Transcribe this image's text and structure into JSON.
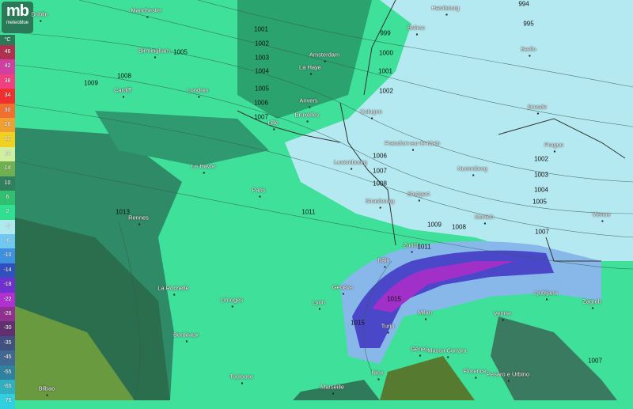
{
  "logo": {
    "mark": "mb",
    "name": "meteoblue"
  },
  "legend": {
    "unit": "°C",
    "entries": [
      {
        "label": "46",
        "color": "#b03050"
      },
      {
        "label": "42",
        "color": "#d040a0"
      },
      {
        "label": "38",
        "color": "#f04080"
      },
      {
        "label": "34",
        "color": "#f03030"
      },
      {
        "label": "30",
        "color": "#f07030"
      },
      {
        "label": "26",
        "color": "#f0a030"
      },
      {
        "label": "22",
        "color": "#f0d020"
      },
      {
        "label": "18",
        "color": "#d0f0a0"
      },
      {
        "label": "14",
        "color": "#70b050"
      },
      {
        "label": "10",
        "color": "#308060"
      },
      {
        "label": "6",
        "color": "#30c070"
      },
      {
        "label": "2",
        "color": "#30e090"
      },
      {
        "label": "-2",
        "color": "#b0e8f0"
      },
      {
        "label": "-6",
        "color": "#70c8f0"
      },
      {
        "label": "-10",
        "color": "#4090e0"
      },
      {
        "label": "-14",
        "color": "#3050c0"
      },
      {
        "label": "-18",
        "color": "#7030d0"
      },
      {
        "label": "-22",
        "color": "#b030d0"
      },
      {
        "label": "-26",
        "color": "#903090"
      },
      {
        "label": "-30",
        "color": "#603070"
      },
      {
        "label": "-35",
        "color": "#405080"
      },
      {
        "label": "-45",
        "color": "#406890"
      },
      {
        "label": "-55",
        "color": "#3080a0"
      },
      {
        "label": "-65",
        "color": "#30b0c0"
      },
      {
        "label": "-75",
        "color": "#30d0e0"
      }
    ]
  },
  "cities": [
    "Dublin",
    "Manchester",
    "Birmingham",
    "Cardiff",
    "Londres",
    "Amsterdam",
    "La Haye",
    "Anvers",
    "Bruxelles",
    "Lille",
    "Le Havre",
    "Paris",
    "Rennes",
    "La Rochelle",
    "Limoges",
    "Bordeaux",
    "Toulouse",
    "Bilbao",
    "Marseille",
    "Lyon",
    "Genève",
    "Bâle",
    "Zurich",
    "Strasbourg",
    "Stuttgart",
    "Luxembourg",
    "Francfort-sur-le-Main",
    "Cologne",
    "Brême",
    "Hambourg",
    "Berlin",
    "Dresde",
    "Prague",
    "Nuremberg",
    "Munich",
    "Vienne",
    "Ljubljana",
    "Zagreb",
    "Venise",
    "Milan",
    "Turin",
    "Gênes",
    "Massa Carrara",
    "Florence",
    "Nice",
    "Pesaro e Urbino"
  ],
  "isobars": [
    "1001",
    "1002",
    "1003",
    "1004",
    "1005",
    "1006",
    "1007",
    "1005",
    "1008",
    "1009",
    "999",
    "1000",
    "1001",
    "1002",
    "994",
    "995",
    "1006",
    "1007",
    "1008",
    "1002",
    "1003",
    "1004",
    "1005",
    "1011",
    "1013",
    "1009",
    "1008",
    "1007",
    "1011",
    "1015",
    "1015",
    "1007"
  ]
}
